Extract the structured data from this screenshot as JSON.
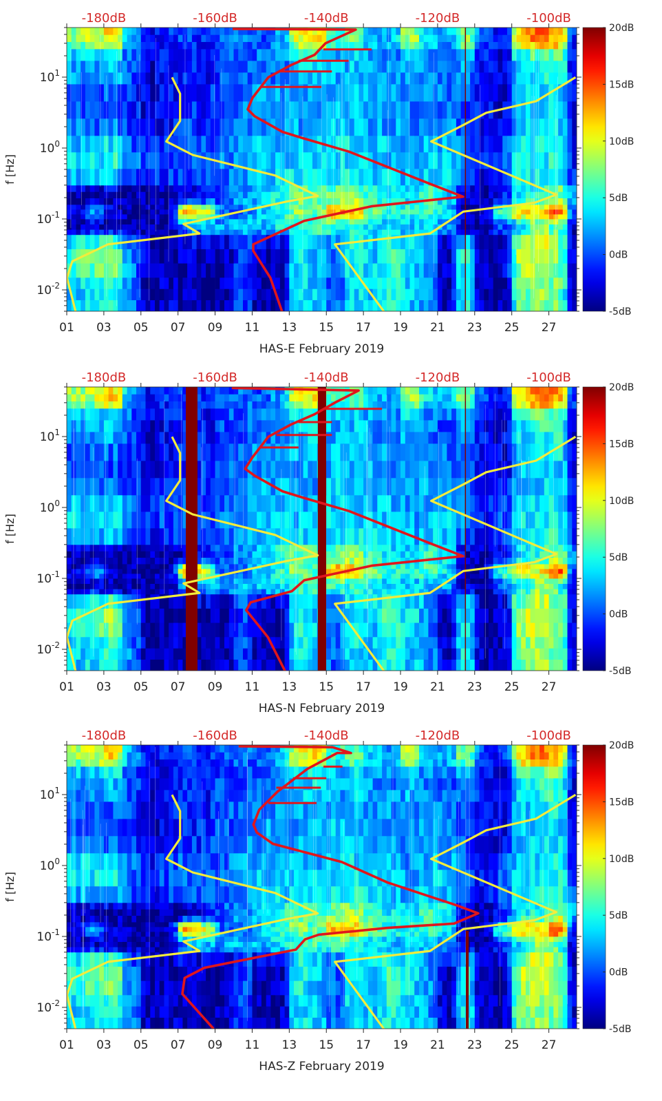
{
  "chart_data": {
    "type": "heatmap",
    "layout": "three stacked spectrogram panels with overlaid curves",
    "xlim_days": [
      1,
      28.5
    ],
    "ylim_hz": [
      0.005,
      50
    ],
    "yscale": "log",
    "x_ticks": [
      {
        "day": 1,
        "label": "01"
      },
      {
        "day": 3,
        "label": "03"
      },
      {
        "day": 5,
        "label": "05"
      },
      {
        "day": 7,
        "label": "07"
      },
      {
        "day": 9,
        "label": "09"
      },
      {
        "day": 11,
        "label": "11"
      },
      {
        "day": 13,
        "label": "13"
      },
      {
        "day": 15,
        "label": "15"
      },
      {
        "day": 17,
        "label": "17"
      },
      {
        "day": 19,
        "label": "19"
      },
      {
        "day": 21,
        "label": "21"
      },
      {
        "day": 23,
        "label": "23"
      },
      {
        "day": 25,
        "label": "25"
      },
      {
        "day": 27,
        "label": "27"
      }
    ],
    "y_ticks": [
      {
        "value": 10,
        "base": "10",
        "exp": "1"
      },
      {
        "value": 1,
        "base": "10",
        "exp": "0"
      },
      {
        "value": 0.1,
        "base": "10",
        "exp": "-1"
      },
      {
        "value": 0.01,
        "base": "10",
        "exp": "-2"
      }
    ],
    "top_axis": {
      "xlim_db": [
        -186.67,
        -95.0
      ],
      "ticks": [
        {
          "value": -180,
          "label": "-180dB"
        },
        {
          "value": -160,
          "label": "-160dB"
        },
        {
          "value": -140,
          "label": "-140dB"
        },
        {
          "value": -120,
          "label": "-120dB"
        },
        {
          "value": -100,
          "label": "-100dB"
        }
      ]
    },
    "ylabel": "f [Hz]",
    "colorbar": {
      "range_db": [
        -5,
        20
      ],
      "colormap": "jet",
      "ticks": [
        {
          "value": 20,
          "label": "20dB"
        },
        {
          "value": 15,
          "label": "15dB"
        },
        {
          "value": 10,
          "label": "10dB"
        },
        {
          "value": 5,
          "label": "5dB"
        },
        {
          "value": 0,
          "label": "0dB"
        },
        {
          "value": -5,
          "label": "-5dB"
        }
      ]
    },
    "colors": {
      "red_curve": "#e0161c",
      "yellow_curve": "#f3ec3c",
      "dropout": "#800000"
    },
    "spectrogram_common": {
      "band_edges_hz": [
        0.005,
        0.015,
        0.06,
        0.1,
        0.16,
        0.3,
        1.5,
        8,
        25,
        50
      ],
      "db_by_band_and_day": [
        [
          3,
          4,
          5,
          1,
          -4,
          -3,
          -4,
          -4,
          -4,
          0,
          -4,
          -4,
          4,
          3,
          0,
          4,
          3,
          5,
          3,
          2,
          -4,
          5,
          -4,
          -4,
          7,
          8,
          7,
          -4
        ],
        [
          6,
          7,
          8,
          1,
          -4,
          -4,
          -3,
          -4,
          -4,
          0,
          -4,
          -4,
          5,
          3,
          0,
          5,
          3,
          6,
          4,
          2,
          -4,
          5,
          -4,
          -4,
          9,
          10,
          8,
          -4
        ],
        [
          -4,
          -3,
          -4,
          -4,
          -4,
          -4,
          2,
          3,
          2,
          3,
          3,
          4,
          5,
          6,
          6,
          5,
          4,
          3,
          3,
          3,
          2,
          -3,
          -4,
          0,
          3,
          8,
          6,
          -4
        ],
        [
          -3,
          2,
          -3,
          -4,
          -4,
          -4,
          14,
          10,
          0,
          1,
          3,
          5,
          8,
          6,
          13,
          12,
          7,
          5,
          5,
          6,
          4,
          -4,
          -4,
          6,
          12,
          10,
          16,
          -3
        ],
        [
          -4,
          -4,
          -4,
          -4,
          -4,
          -4,
          -3,
          -2,
          0,
          2,
          3,
          5,
          7,
          6,
          7,
          8,
          5,
          4,
          4,
          6,
          4,
          -3,
          -4,
          -2,
          4,
          5,
          8,
          2
        ],
        [
          4,
          4,
          5,
          1,
          -1,
          0,
          1,
          0,
          1,
          2,
          3,
          3,
          3,
          3,
          4,
          4,
          3,
          3,
          2,
          3,
          3,
          1,
          -2,
          0,
          4,
          4,
          5,
          -2
        ],
        [
          0,
          0,
          0,
          -1,
          -3,
          -2,
          -1,
          -1,
          0,
          1,
          2,
          2,
          2,
          2,
          3,
          3,
          2,
          2,
          1,
          2,
          1,
          0,
          -2,
          -3,
          3,
          3,
          4,
          -3
        ],
        [
          2,
          2,
          3,
          0,
          -3,
          -2,
          -1,
          -2,
          0,
          0,
          1,
          1,
          3,
          4,
          2,
          3,
          2,
          1,
          3,
          1,
          0,
          2,
          -2,
          -3,
          4,
          5,
          6,
          -3
        ],
        [
          8,
          9,
          12,
          2,
          -2,
          -1,
          0,
          -1,
          0,
          1,
          0,
          2,
          10,
          11,
          5,
          7,
          3,
          2,
          9,
          4,
          2,
          8,
          0,
          -2,
          12,
          14,
          13,
          -2
        ]
      ]
    },
    "panels": [
      {
        "station": "HAS-E",
        "xlabel": "HAS-E February 2019",
        "dropouts_days": [],
        "vertical_lines": [
          {
            "day": 22.5,
            "fmin_hz": 0.005,
            "fmax_hz": 50
          }
        ],
        "red_curve_db_hz": [
          [
            -147.95,
            0.0049
          ],
          [
            -150.06,
            0.0148
          ],
          [
            -153.15,
            0.0356
          ],
          [
            -153.15,
            0.0438
          ],
          [
            -143.99,
            0.0941
          ],
          [
            -131.87,
            0.151
          ],
          [
            -115.42,
            0.206
          ],
          [
            -121.11,
            0.307
          ],
          [
            -135.95,
            0.89
          ],
          [
            -144.24,
            1.38
          ],
          [
            -147.9,
            1.69
          ],
          [
            -152.9,
            2.81
          ],
          [
            -154.14,
            3.51
          ],
          [
            -153.27,
            5.11
          ],
          [
            -150.43,
            9.93
          ],
          [
            -146.35,
            14.8
          ],
          [
            -142.14,
            20.6
          ],
          [
            -140.16,
            30.0
          ],
          [
            -134.72,
            46.8
          ],
          [
            -156.86,
            47.8
          ]
        ],
        "red_spikes_db_hz": [
          [
            [
              -151.66,
              7.28
            ],
            [
              -140.9,
              7.28
            ]
          ],
          [
            [
              -148.5,
              12
            ],
            [
              -139,
              12
            ]
          ],
          [
            [
              -145,
              17
            ],
            [
              -136,
              17
            ]
          ],
          [
            [
              -140.53,
              24.6
            ],
            [
              -131.87,
              24.6
            ]
          ]
        ],
        "yellow_curves_db_hz": [
          [
            [
              -185.06,
              0.00489
            ],
            [
              -186.63,
              0.0149
            ],
            [
              -185.68,
              0.0252
            ],
            [
              -179.28,
              0.0438
            ],
            [
              -162.8,
              0.0624
            ],
            [
              -165.68,
              0.085
            ],
            [
              -147.12,
              0.176
            ],
            [
              -141.55,
              0.211
            ],
            [
              -149.19,
              0.41
            ],
            [
              -164.03,
              0.8
            ],
            [
              -168.77,
              1.24
            ],
            [
              -166.3,
              2.41
            ],
            [
              -166.3,
              5.84
            ],
            [
              -167.74,
              9.93
            ]
          ],
          [
            [
              -129.6,
              0.00489
            ],
            [
              -138.46,
              0.0438
            ],
            [
              -121.36,
              0.0624
            ],
            [
              -115.38,
              0.127
            ],
            [
              -102.6,
              0.169
            ],
            [
              -98.68,
              0.22
            ],
            [
              -121.15,
              1.24
            ],
            [
              -115.38,
              2.11
            ],
            [
              -111.26,
              3.14
            ],
            [
              -102.3,
              4.57
            ],
            [
              -95.2,
              9.93
            ]
          ]
        ]
      },
      {
        "station": "HAS-N",
        "xlabel": "HAS-N February 2019",
        "dropouts_days": [
          [
            7.42,
            8.05
          ],
          [
            14.54,
            14.99
          ]
        ],
        "vertical_lines": [
          {
            "day": 22.5,
            "fmin_hz": 0.005,
            "fmax_hz": 50
          }
        ],
        "red_curve_db_hz": [
          [
            -147.4,
            0.0049
          ],
          [
            -150.5,
            0.0148
          ],
          [
            -154.4,
            0.0356
          ],
          [
            -153.6,
            0.046
          ],
          [
            -146.2,
            0.066
          ],
          [
            -143.99,
            0.094
          ],
          [
            -131.87,
            0.151
          ],
          [
            -115.42,
            0.206
          ],
          [
            -121.11,
            0.307
          ],
          [
            -135.95,
            0.89
          ],
          [
            -144.24,
            1.38
          ],
          [
            -147.9,
            1.69
          ],
          [
            -152.9,
            2.81
          ],
          [
            -154.6,
            3.51
          ],
          [
            -153.27,
            5.11
          ],
          [
            -150.43,
            9.93
          ],
          [
            -146.35,
            14.8
          ],
          [
            -142.14,
            20.6
          ],
          [
            -138.5,
            30.0
          ],
          [
            -134.2,
            44.5
          ],
          [
            -157.0,
            48.5
          ]
        ],
        "red_spikes_db_hz": [
          [
            [
              -152,
              7.0
            ],
            [
              -145,
              7.0
            ]
          ],
          [
            [
              -149,
              10.5
            ],
            [
              -139,
              10.5
            ]
          ],
          [
            [
              -145,
              16
            ],
            [
              -139,
              16
            ]
          ],
          [
            [
              -140.5,
              24.6
            ],
            [
              -130,
              24.6
            ]
          ]
        ],
        "yellow_curves_db_hz": [
          [
            [
              -185.06,
              0.00489
            ],
            [
              -186.63,
              0.0149
            ],
            [
              -185.68,
              0.0252
            ],
            [
              -179.28,
              0.0438
            ],
            [
              -162.8,
              0.0624
            ],
            [
              -165.68,
              0.085
            ],
            [
              -147.12,
              0.176
            ],
            [
              -141.55,
              0.211
            ],
            [
              -149.19,
              0.41
            ],
            [
              -164.03,
              0.8
            ],
            [
              -168.77,
              1.24
            ],
            [
              -166.3,
              2.41
            ],
            [
              -166.3,
              5.84
            ],
            [
              -167.74,
              9.93
            ]
          ],
          [
            [
              -129.6,
              0.00489
            ],
            [
              -138.46,
              0.0438
            ],
            [
              -121.36,
              0.0624
            ],
            [
              -115.38,
              0.127
            ],
            [
              -102.6,
              0.169
            ],
            [
              -98.68,
              0.22
            ],
            [
              -121.15,
              1.24
            ],
            [
              -115.38,
              2.11
            ],
            [
              -111.26,
              3.14
            ],
            [
              -102.3,
              4.57
            ],
            [
              -95.2,
              9.93
            ]
          ]
        ]
      },
      {
        "station": "HAS-Z",
        "xlabel": "HAS-Z February 2019",
        "dropouts_days": [],
        "vertical_lines": [
          {
            "day": 22.6,
            "fmin_hz": 0.005,
            "fmax_hz": 0.12
          }
        ],
        "red_curve_db_hz": [
          [
            -160.3,
            0.005
          ],
          [
            -162.8,
            0.0083
          ],
          [
            -165.89,
            0.0155
          ],
          [
            -165.48,
            0.0259
          ],
          [
            -161.97,
            0.0361
          ],
          [
            -153.73,
            0.0486
          ],
          [
            -145.48,
            0.0652
          ],
          [
            -143.83,
            0.091
          ],
          [
            -141.36,
            0.106
          ],
          [
            -128.99,
            0.132
          ],
          [
            -117.03,
            0.152
          ],
          [
            -112.7,
            0.212
          ],
          [
            -116.62,
            0.275
          ],
          [
            -128.99,
            0.575
          ],
          [
            -137.23,
            1.12
          ],
          [
            -149.6,
            2.02
          ],
          [
            -152.49,
            2.92
          ],
          [
            -153.11,
            3.78
          ],
          [
            -152.07,
            6.11
          ],
          [
            -148.78,
            11.0
          ],
          [
            -143.41,
            23.0
          ],
          [
            -138.05,
            38.6
          ],
          [
            -135.58,
            38.6
          ],
          [
            -138.88,
            46.5
          ],
          [
            -155.78,
            48
          ]
        ],
        "red_spikes_db_hz": [
          [
            [
              -150.43,
              7.62
            ],
            [
              -141.77,
              7.62
            ]
          ],
          [
            [
              -149,
              12.5
            ],
            [
              -141,
              12.5
            ]
          ],
          [
            [
              -146,
              17
            ],
            [
              -140,
              17
            ]
          ],
          [
            [
              -140.53,
              24.8
            ],
            [
              -137.1,
              24.8
            ]
          ]
        ],
        "yellow_curves_db_hz": [
          [
            [
              -185.06,
              0.00489
            ],
            [
              -186.63,
              0.0149
            ],
            [
              -185.68,
              0.0252
            ],
            [
              -179.28,
              0.0438
            ],
            [
              -162.8,
              0.0624
            ],
            [
              -165.68,
              0.085
            ],
            [
              -147.12,
              0.176
            ],
            [
              -141.55,
              0.211
            ],
            [
              -149.19,
              0.41
            ],
            [
              -164.03,
              0.8
            ],
            [
              -168.77,
              1.24
            ],
            [
              -166.3,
              2.41
            ],
            [
              -166.3,
              5.84
            ],
            [
              -167.74,
              9.93
            ]
          ],
          [
            [
              -129.6,
              0.00489
            ],
            [
              -138.46,
              0.0438
            ],
            [
              -121.36,
              0.0624
            ],
            [
              -115.38,
              0.127
            ],
            [
              -102.6,
              0.169
            ],
            [
              -98.68,
              0.22
            ],
            [
              -121.15,
              1.24
            ],
            [
              -115.38,
              2.11
            ],
            [
              -111.26,
              3.14
            ],
            [
              -102.3,
              4.57
            ],
            [
              -95.2,
              9.93
            ]
          ]
        ]
      }
    ]
  }
}
